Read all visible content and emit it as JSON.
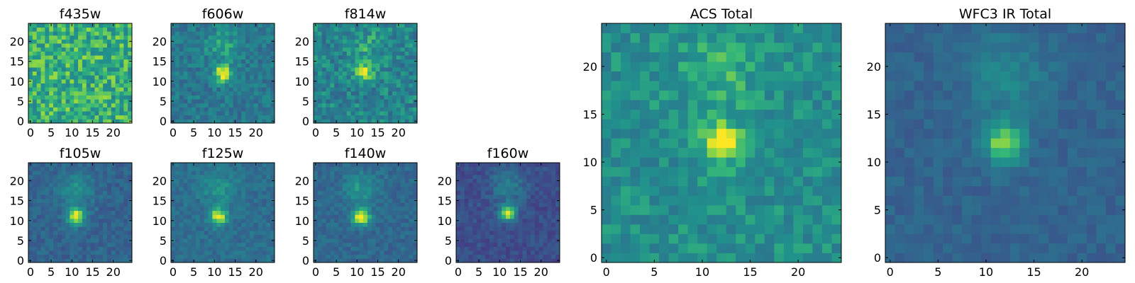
{
  "chart_data": [
    {
      "type": "heatmap",
      "title": "f435w",
      "xlim": [
        0,
        24
      ],
      "ylim": [
        0,
        24
      ],
      "xticks": [
        "0",
        "5",
        "10",
        "15",
        "20"
      ],
      "yticks": [
        "0",
        "5",
        "10",
        "15",
        "20"
      ],
      "grid": false,
      "colormap": "viridis",
      "peak": [
        12,
        12
      ],
      "peak_strength": 0.05,
      "background_level": 0.72,
      "noise": 0.17
    },
    {
      "type": "heatmap",
      "title": "f606w",
      "xlim": [
        0,
        24
      ],
      "ylim": [
        0,
        24
      ],
      "xticks": [
        "0",
        "5",
        "10",
        "15",
        "20"
      ],
      "yticks": [
        "0",
        "5",
        "10",
        "15",
        "20"
      ],
      "grid": false,
      "colormap": "viridis",
      "peak": [
        12,
        12
      ],
      "peak_strength": 0.5,
      "background_level": 0.5,
      "noise": 0.12
    },
    {
      "type": "heatmap",
      "title": "f814w",
      "xlim": [
        0,
        24
      ],
      "ylim": [
        0,
        24
      ],
      "xticks": [
        "0",
        "5",
        "10",
        "15",
        "20"
      ],
      "yticks": [
        "0",
        "5",
        "10",
        "15",
        "20"
      ],
      "grid": false,
      "colormap": "viridis",
      "peak": [
        12,
        12
      ],
      "peak_strength": 0.4,
      "background_level": 0.55,
      "noise": 0.15
    },
    {
      "type": "heatmap",
      "title": "f105w",
      "xlim": [
        0,
        24
      ],
      "ylim": [
        0,
        24
      ],
      "xticks": [
        "0",
        "5",
        "10",
        "15",
        "20"
      ],
      "yticks": [
        "0",
        "5",
        "10",
        "15",
        "20"
      ],
      "grid": false,
      "colormap": "viridis",
      "peak": [
        11,
        11
      ],
      "peak_strength": 0.6,
      "background_level": 0.4,
      "noise": 0.08
    },
    {
      "type": "heatmap",
      "title": "f125w",
      "xlim": [
        0,
        24
      ],
      "ylim": [
        0,
        24
      ],
      "xticks": [
        "0",
        "5",
        "10",
        "15",
        "20"
      ],
      "yticks": [
        "0",
        "5",
        "10",
        "15",
        "20"
      ],
      "grid": false,
      "colormap": "viridis",
      "peak": [
        11,
        11
      ],
      "peak_strength": 0.55,
      "background_level": 0.45,
      "noise": 0.08
    },
    {
      "type": "heatmap",
      "title": "f140w",
      "xlim": [
        0,
        24
      ],
      "ylim": [
        0,
        24
      ],
      "xticks": [
        "0",
        "5",
        "10",
        "15",
        "20"
      ],
      "yticks": [
        "0",
        "5",
        "10",
        "15",
        "20"
      ],
      "grid": false,
      "colormap": "viridis",
      "peak": [
        11,
        11
      ],
      "peak_strength": 0.6,
      "background_level": 0.42,
      "noise": 0.08
    },
    {
      "type": "heatmap",
      "title": "f160w",
      "xlim": [
        0,
        24
      ],
      "ylim": [
        0,
        24
      ],
      "xticks": [
        "0",
        "5",
        "10",
        "15",
        "20"
      ],
      "yticks": [
        "0",
        "5",
        "10",
        "15",
        "20"
      ],
      "grid": false,
      "colormap": "viridis",
      "peak": [
        12,
        12
      ],
      "peak_strength": 0.65,
      "background_level": 0.3,
      "noise": 0.08
    },
    {
      "type": "heatmap",
      "title": "ACS Total",
      "xlim": [
        0,
        24
      ],
      "ylim": [
        0,
        24
      ],
      "xticks": [
        "0",
        "5",
        "10",
        "15",
        "20"
      ],
      "yticks": [
        "0",
        "5",
        "10",
        "15",
        "20"
      ],
      "grid": false,
      "colormap": "viridis",
      "peak": [
        12,
        12
      ],
      "peak_strength": 0.4,
      "background_level": 0.6,
      "noise": 0.11
    },
    {
      "type": "heatmap",
      "title": "WFC3 IR Total",
      "xlim": [
        0,
        24
      ],
      "ylim": [
        0,
        24
      ],
      "xticks": [
        "0",
        "5",
        "10",
        "15",
        "20"
      ],
      "yticks": [
        "0",
        "5",
        "10",
        "15",
        "20"
      ],
      "grid": false,
      "colormap": "viridis",
      "peak": [
        12,
        12
      ],
      "peak_strength": 0.5,
      "background_level": 0.4,
      "noise": 0.06
    }
  ]
}
